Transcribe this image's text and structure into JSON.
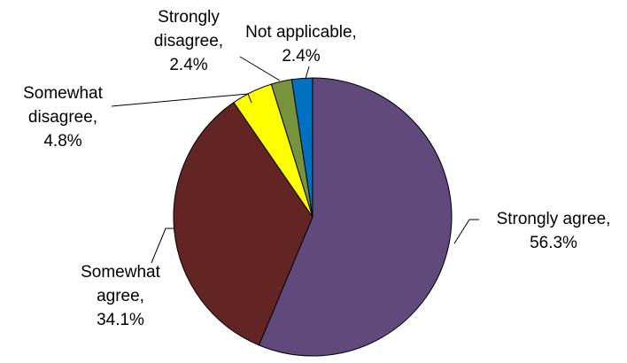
{
  "chart_data": {
    "type": "pie",
    "title": "",
    "start_angle_deg": 0,
    "direction": "clockwise",
    "slices": [
      {
        "name": "Strongly agree",
        "value": 56.3,
        "label": "56.3%",
        "color": "#604A7B"
      },
      {
        "name": "Somewhat agree",
        "value": 34.1,
        "label": "34.1%",
        "color": "#632523"
      },
      {
        "name": "Somewhat disagree",
        "value": 4.8,
        "label": "4.8%",
        "color": "#FFFF00"
      },
      {
        "name": "Strongly disagree",
        "value": 2.4,
        "label": "2.4%",
        "color": "#77933C"
      },
      {
        "name": "Not applicable",
        "value": 2.4,
        "label": "2.4%",
        "color": "#0070C0"
      }
    ],
    "legend": "none",
    "data_labels": "outside-with-leader-lines"
  }
}
